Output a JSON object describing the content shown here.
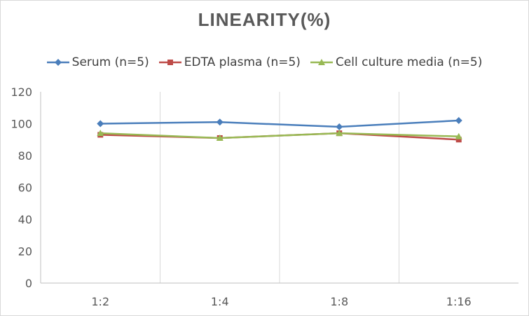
{
  "chart_data": {
    "type": "line",
    "title": "LINEARITY(%)",
    "xlabel": "",
    "ylabel": "",
    "categories": [
      "1:2",
      "1:4",
      "1:8",
      "1:16"
    ],
    "ylim": [
      0,
      120
    ],
    "yticks": [
      0,
      20,
      40,
      60,
      80,
      100,
      120
    ],
    "grid": "vertical",
    "legend_position": "top",
    "series": [
      {
        "name": "Serum (n=5)",
        "values": [
          100,
          101,
          98,
          102
        ],
        "color": "#4a7ebb",
        "marker": "diamond"
      },
      {
        "name": "EDTA plasma (n=5)",
        "values": [
          93,
          91,
          94,
          90
        ],
        "color": "#be4b48",
        "marker": "square"
      },
      {
        "name": "Cell culture media (n=5)",
        "values": [
          94,
          91,
          94,
          92
        ],
        "color": "#98b954",
        "marker": "triangle"
      }
    ]
  }
}
